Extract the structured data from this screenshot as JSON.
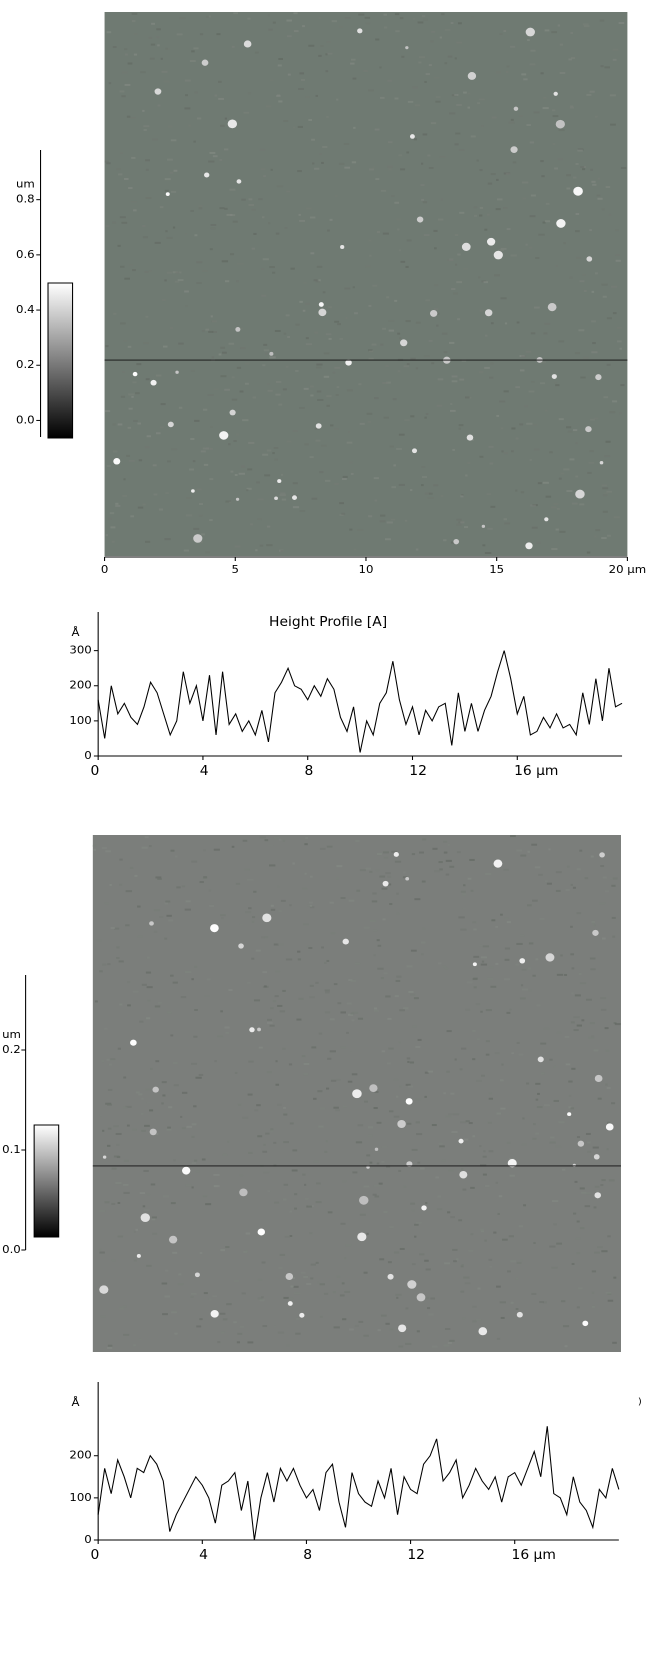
{
  "chart_data": [
    {
      "type": "image",
      "unit_label": "um",
      "ylim": [
        -0.06,
        0.98
      ],
      "yticks": [
        {
          "value": 0,
          "label": "0.0"
        },
        0.2,
        0.4,
        0.6,
        0.8
      ],
      "xlim": [
        0,
        20
      ],
      "xticks": [
        0,
        5,
        10,
        15,
        {
          "value": 20,
          "label": "20 µm"
        }
      ]
    },
    {
      "type": "line",
      "title": "Height Profile [A]",
      "ylabel": "Å",
      "color": "#000000",
      "x": [
        0,
        0.25,
        0.5,
        0.75,
        1,
        1.25,
        1.5,
        1.75,
        2,
        2.25,
        2.5,
        2.75,
        3,
        3.25,
        3.5,
        3.75,
        4,
        4.25,
        4.5,
        4.75,
        5,
        5.25,
        5.5,
        5.75,
        6,
        6.25,
        6.5,
        6.75,
        7,
        7.25,
        7.5,
        7.75,
        8,
        8.25,
        8.5,
        8.75,
        9,
        9.25,
        9.5,
        9.75,
        10,
        10.25,
        10.5,
        10.75,
        11,
        11.25,
        11.5,
        11.75,
        12,
        12.25,
        12.5,
        12.75,
        13,
        13.25,
        13.5,
        13.75,
        14,
        14.25,
        14.5,
        14.75,
        15,
        15.25,
        15.5,
        15.75,
        16,
        16.25,
        16.5,
        16.75,
        17,
        17.25,
        17.5,
        17.75,
        18,
        18.25,
        18.5,
        18.75,
        19,
        19.25,
        19.5,
        19.75,
        20
      ],
      "values": [
        160,
        50,
        200,
        120,
        150,
        110,
        90,
        140,
        210,
        180,
        120,
        60,
        100,
        240,
        150,
        200,
        100,
        230,
        60,
        240,
        90,
        120,
        70,
        100,
        60,
        130,
        40,
        180,
        210,
        250,
        200,
        190,
        160,
        200,
        170,
        220,
        190,
        110,
        70,
        140,
        10,
        100,
        60,
        150,
        180,
        270,
        160,
        90,
        140,
        60,
        130,
        100,
        140,
        150,
        30,
        180,
        70,
        150,
        70,
        130,
        170,
        240,
        300,
        220,
        120,
        170,
        60,
        70,
        110,
        80,
        120,
        80,
        90,
        60,
        180,
        90,
        220,
        100,
        250,
        140,
        150
      ],
      "xlim": [
        0,
        20
      ],
      "ylim": [
        0,
        410
      ],
      "xticks": [
        0,
        4,
        8,
        12,
        {
          "value": 16,
          "label": "16 µm"
        }
      ],
      "yticks": [
        0,
        100,
        200,
        300
      ]
    },
    {
      "type": "image",
      "unit_label": "um",
      "ylim": [
        0,
        0.275
      ],
      "yticks": [
        {
          "value": 0,
          "label": "0.0"
        },
        0.1,
        0.2
      ]
    },
    {
      "type": "line",
      "ylabel": "Å",
      "annotation": ")",
      "color": "#000000",
      "x": [
        0,
        0.25,
        0.5,
        0.75,
        1,
        1.25,
        1.5,
        1.75,
        2,
        2.25,
        2.5,
        2.75,
        3,
        3.25,
        3.5,
        3.75,
        4,
        4.25,
        4.5,
        4.75,
        5,
        5.25,
        5.5,
        5.75,
        6,
        6.25,
        6.5,
        6.75,
        7,
        7.25,
        7.5,
        7.75,
        8,
        8.25,
        8.5,
        8.75,
        9,
        9.25,
        9.5,
        9.75,
        10,
        10.25,
        10.5,
        10.75,
        11,
        11.25,
        11.5,
        11.75,
        12,
        12.25,
        12.5,
        12.75,
        13,
        13.25,
        13.5,
        13.75,
        14,
        14.25,
        14.5,
        14.75,
        15,
        15.25,
        15.5,
        15.75,
        16,
        16.25,
        16.5,
        16.75,
        17,
        17.25,
        17.5,
        17.75,
        18,
        18.25,
        18.5,
        18.75,
        19,
        19.25,
        19.5,
        19.75,
        20
      ],
      "values": [
        60,
        170,
        110,
        190,
        150,
        100,
        170,
        160,
        200,
        180,
        140,
        20,
        60,
        90,
        120,
        150,
        130,
        100,
        40,
        130,
        140,
        160,
        70,
        140,
        0,
        100,
        160,
        90,
        170,
        140,
        170,
        130,
        100,
        120,
        70,
        160,
        180,
        90,
        30,
        160,
        110,
        90,
        80,
        140,
        100,
        170,
        60,
        150,
        120,
        110,
        180,
        200,
        240,
        140,
        160,
        190,
        100,
        130,
        170,
        140,
        120,
        150,
        90,
        150,
        160,
        130,
        170,
        210,
        150,
        270,
        110,
        100,
        60,
        150,
        90,
        70,
        30,
        120,
        100,
        170,
        120
      ],
      "xlim": [
        0,
        20
      ],
      "ylim": [
        0,
        375
      ],
      "xticks": [
        0,
        4,
        8,
        12,
        {
          "value": 16,
          "label": "16 µm"
        }
      ],
      "yticks": [
        0,
        100,
        200
      ]
    }
  ]
}
